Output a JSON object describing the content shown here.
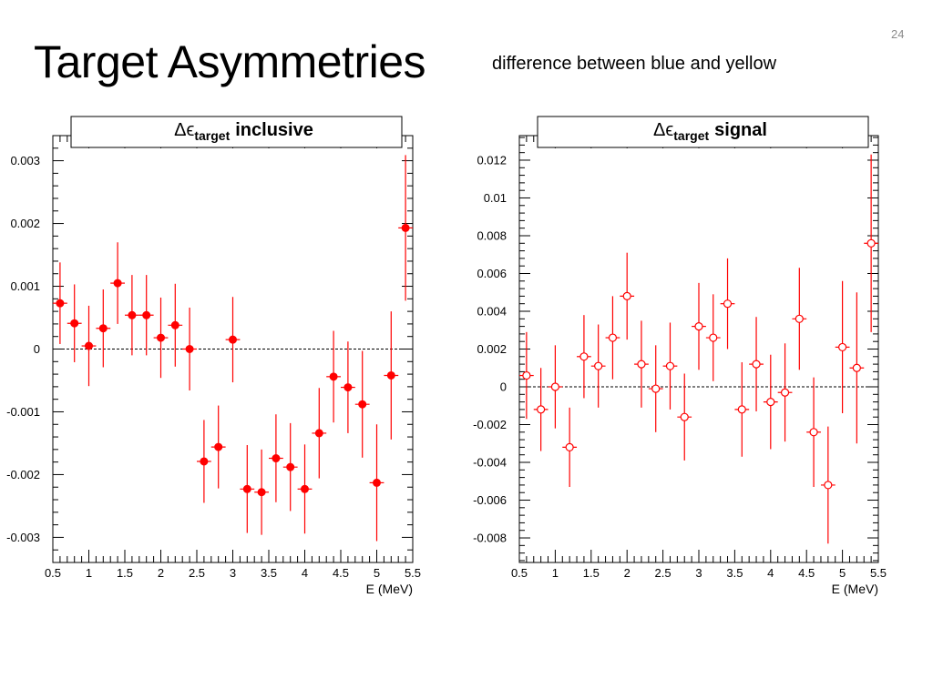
{
  "slide": {
    "title": "Target Asymmetries",
    "subtitle": "difference between blue and yellow",
    "page_number": "24"
  },
  "chart_data": [
    {
      "type": "scatter",
      "title_prefix": "Δϵ",
      "title_sub": "target",
      "title_suffix": "inclusive",
      "xlabel": "E (MeV)",
      "ylabel": "",
      "xlim": [
        0.5,
        5.5
      ],
      "ylim": [
        -0.0034,
        0.0034
      ],
      "xticks": [
        0.5,
        1,
        1.5,
        2,
        2.5,
        3,
        3.5,
        4,
        4.5,
        5,
        5.5
      ],
      "xtick_labels": [
        "0.5",
        "1",
        "1.5",
        "2",
        "2.5",
        "3",
        "3.5",
        "4",
        "4.5",
        "5",
        "5.5"
      ],
      "yticks": [
        -0.003,
        -0.002,
        -0.001,
        0,
        0.001,
        0.002,
        0.003
      ],
      "ytick_labels": [
        "-0.003",
        "-0.002",
        "-0.001",
        "0",
        "0.001",
        "0.002",
        "0.003"
      ],
      "marker": "filled-circle",
      "color": "#ff0000",
      "reference_line": 0,
      "grid": false,
      "points": [
        {
          "x": 0.6,
          "y": 0.00073,
          "err": 0.00065
        },
        {
          "x": 0.8,
          "y": 0.00041,
          "err": 0.00062
        },
        {
          "x": 1.0,
          "y": 5e-05,
          "err": 0.00064
        },
        {
          "x": 1.2,
          "y": 0.00033,
          "err": 0.00062
        },
        {
          "x": 1.4,
          "y": 0.00105,
          "err": 0.00065
        },
        {
          "x": 1.6,
          "y": 0.00054,
          "err": 0.00064
        },
        {
          "x": 1.8,
          "y": 0.00054,
          "err": 0.00064
        },
        {
          "x": 2.0,
          "y": 0.00018,
          "err": 0.00064
        },
        {
          "x": 2.2,
          "y": 0.00038,
          "err": 0.00066
        },
        {
          "x": 2.4,
          "y": 0.0,
          "err": 0.00066
        },
        {
          "x": 3.0,
          "y": 0.00015,
          "err": 0.00068
        },
        {
          "x": 2.6,
          "y": -0.00179,
          "err": 0.00066
        },
        {
          "x": 2.8,
          "y": -0.00156,
          "err": 0.00066
        },
        {
          "x": 3.2,
          "y": -0.00223,
          "err": 0.0007
        },
        {
          "x": 3.4,
          "y": -0.00228,
          "err": 0.00068
        },
        {
          "x": 3.6,
          "y": -0.00174,
          "err": 0.0007
        },
        {
          "x": 3.8,
          "y": -0.00188,
          "err": 0.0007
        },
        {
          "x": 4.0,
          "y": -0.00223,
          "err": 0.00071
        },
        {
          "x": 4.2,
          "y": -0.00134,
          "err": 0.00072
        },
        {
          "x": 4.4,
          "y": -0.00044,
          "err": 0.00073
        },
        {
          "x": 4.6,
          "y": -0.00061,
          "err": 0.00073
        },
        {
          "x": 4.8,
          "y": -0.00088,
          "err": 0.00085
        },
        {
          "x": 5.0,
          "y": -0.00213,
          "err": 0.00093
        },
        {
          "x": 5.2,
          "y": -0.00042,
          "err": 0.00102
        },
        {
          "x": 5.4,
          "y": 0.00193,
          "err": 0.00116
        }
      ]
    },
    {
      "type": "scatter",
      "title_prefix": "Δϵ",
      "title_sub": "target",
      "title_suffix": "signal",
      "xlabel": "E (MeV)",
      "ylabel": "",
      "xlim": [
        0.5,
        5.5
      ],
      "ylim": [
        -0.0093,
        0.0133
      ],
      "xticks": [
        0.5,
        1,
        1.5,
        2,
        2.5,
        3,
        3.5,
        4,
        4.5,
        5,
        5.5
      ],
      "xtick_labels": [
        "0.5",
        "1",
        "1.5",
        "2",
        "2.5",
        "3",
        "3.5",
        "4",
        "4.5",
        "5",
        "5.5"
      ],
      "yticks": [
        -0.008,
        -0.006,
        -0.004,
        -0.002,
        0,
        0.002,
        0.004,
        0.006,
        0.008,
        0.01,
        0.012
      ],
      "ytick_labels": [
        "-0.008",
        "-0.006",
        "-0.004",
        "-0.002",
        "0",
        "0.002",
        "0.004",
        "0.006",
        "0.008",
        "0.01",
        "0.012"
      ],
      "marker": "open-circle",
      "color": "#ff0000",
      "reference_line": 0,
      "grid": false,
      "points": [
        {
          "x": 0.6,
          "y": 0.0006,
          "err": 0.0023
        },
        {
          "x": 0.8,
          "y": -0.0012,
          "err": 0.0022
        },
        {
          "x": 1.0,
          "y": 0.0,
          "err": 0.0022
        },
        {
          "x": 1.2,
          "y": -0.0032,
          "err": 0.0021
        },
        {
          "x": 1.4,
          "y": 0.0016,
          "err": 0.0022
        },
        {
          "x": 1.6,
          "y": 0.0011,
          "err": 0.0022
        },
        {
          "x": 1.8,
          "y": 0.0026,
          "err": 0.0022
        },
        {
          "x": 2.0,
          "y": 0.0048,
          "err": 0.0023
        },
        {
          "x": 2.2,
          "y": 0.0012,
          "err": 0.0023
        },
        {
          "x": 2.4,
          "y": -0.0001,
          "err": 0.0023
        },
        {
          "x": 2.6,
          "y": 0.0011,
          "err": 0.0023
        },
        {
          "x": 2.8,
          "y": -0.0016,
          "err": 0.0023
        },
        {
          "x": 3.0,
          "y": 0.0032,
          "err": 0.0023
        },
        {
          "x": 3.2,
          "y": 0.0026,
          "err": 0.0023
        },
        {
          "x": 3.4,
          "y": 0.0044,
          "err": 0.0024
        },
        {
          "x": 3.6,
          "y": -0.0012,
          "err": 0.0025
        },
        {
          "x": 3.8,
          "y": 0.0012,
          "err": 0.0025
        },
        {
          "x": 4.0,
          "y": -0.0008,
          "err": 0.0025
        },
        {
          "x": 4.2,
          "y": -0.0003,
          "err": 0.0026
        },
        {
          "x": 4.4,
          "y": 0.0036,
          "err": 0.0027
        },
        {
          "x": 4.6,
          "y": -0.0024,
          "err": 0.0029
        },
        {
          "x": 4.8,
          "y": -0.0052,
          "err": 0.0031
        },
        {
          "x": 5.0,
          "y": 0.0021,
          "err": 0.0035
        },
        {
          "x": 5.2,
          "y": 0.001,
          "err": 0.004
        },
        {
          "x": 5.4,
          "y": 0.0076,
          "err": 0.0047
        }
      ]
    }
  ]
}
